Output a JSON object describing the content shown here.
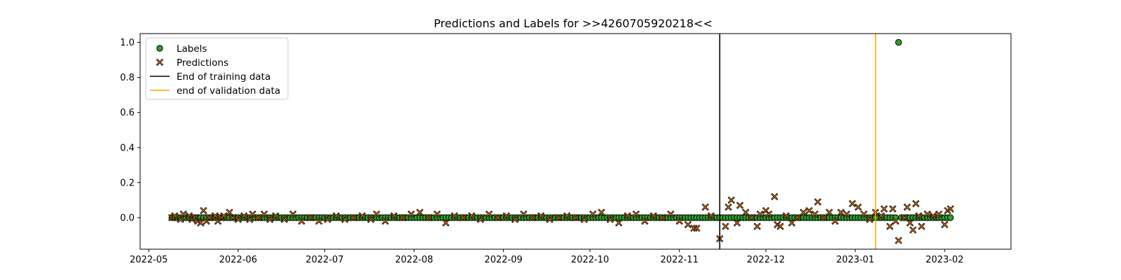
{
  "chart_data": {
    "type": "scatter",
    "title": "Predictions and Labels for >>4260705920218<<",
    "xlabel": "",
    "ylabel": "",
    "x_type": "date",
    "xlim": [
      "2022-04-28",
      "2023-02-24"
    ],
    "ylim": [
      -0.18,
      1.05
    ],
    "x_ticks": [
      "2022-05",
      "2022-06",
      "2022-07",
      "2022-08",
      "2022-09",
      "2022-10",
      "2022-11",
      "2022-12",
      "2023-01",
      "2023-02"
    ],
    "y_ticks": [
      "0.0",
      "0.2",
      "0.4",
      "0.6",
      "0.8",
      "1.0"
    ],
    "grid": false,
    "legend_position": "top-left",
    "legend": [
      "Labels",
      "Predictions",
      "End of training data",
      "end of validation data"
    ],
    "colors": {
      "labels": "#2ca02c",
      "predictions": "#ff7f0e",
      "training_line": "#000000",
      "validation_line": "#ffa500",
      "marker_edge": "#000000"
    },
    "vlines": [
      {
        "name": "End of training data",
        "x": "2022-11-15"
      },
      {
        "name": "end of validation data",
        "x": "2023-01-08"
      }
    ],
    "series": [
      {
        "name": "Labels",
        "marker": "circle",
        "start": "2022-05-09",
        "end": "2023-02-03",
        "default_value": 0.0,
        "points": [
          [
            "2023-01-16",
            1.0
          ]
        ]
      },
      {
        "name": "Predictions",
        "marker": "x",
        "start": "2022-05-09",
        "end": "2023-02-03",
        "points": [
          [
            "2022-05-09",
            0.0
          ],
          [
            "2022-05-10",
            0.01
          ],
          [
            "2022-05-12",
            -0.01
          ],
          [
            "2022-05-13",
            0.02
          ],
          [
            "2022-05-15",
            0.01
          ],
          [
            "2022-05-16",
            -0.01
          ],
          [
            "2022-05-17",
            0.0
          ],
          [
            "2022-05-18",
            -0.02
          ],
          [
            "2022-05-19",
            -0.03
          ],
          [
            "2022-05-20",
            0.04
          ],
          [
            "2022-05-21",
            -0.02
          ],
          [
            "2022-05-22",
            0.0
          ],
          [
            "2022-05-24",
            0.01
          ],
          [
            "2022-05-25",
            -0.02
          ],
          [
            "2022-05-26",
            0.0
          ],
          [
            "2022-05-27",
            0.01
          ],
          [
            "2022-05-29",
            0.03
          ],
          [
            "2022-05-30",
            0.0
          ],
          [
            "2022-06-01",
            -0.01
          ],
          [
            "2022-06-03",
            0.01
          ],
          [
            "2022-06-05",
            -0.01
          ],
          [
            "2022-06-06",
            0.02
          ],
          [
            "2022-06-08",
            0.0
          ],
          [
            "2022-06-10",
            0.02
          ],
          [
            "2022-06-12",
            -0.01
          ],
          [
            "2022-06-14",
            0.01
          ],
          [
            "2022-06-17",
            -0.01
          ],
          [
            "2022-06-20",
            0.02
          ],
          [
            "2022-06-23",
            -0.02
          ],
          [
            "2022-06-26",
            0.0
          ],
          [
            "2022-06-29",
            -0.02
          ],
          [
            "2022-07-02",
            -0.01
          ],
          [
            "2022-07-05",
            0.01
          ],
          [
            "2022-07-08",
            -0.01
          ],
          [
            "2022-07-11",
            0.0
          ],
          [
            "2022-07-14",
            0.01
          ],
          [
            "2022-07-17",
            -0.01
          ],
          [
            "2022-07-19",
            0.02
          ],
          [
            "2022-07-22",
            -0.02
          ],
          [
            "2022-07-25",
            0.01
          ],
          [
            "2022-07-28",
            0.0
          ],
          [
            "2022-07-31",
            0.02
          ],
          [
            "2022-08-03",
            0.03
          ],
          [
            "2022-08-06",
            0.0
          ],
          [
            "2022-08-09",
            0.02
          ],
          [
            "2022-08-12",
            -0.03
          ],
          [
            "2022-08-15",
            0.01
          ],
          [
            "2022-08-18",
            0.0
          ],
          [
            "2022-08-21",
            0.01
          ],
          [
            "2022-08-24",
            -0.01
          ],
          [
            "2022-08-27",
            0.02
          ],
          [
            "2022-08-30",
            0.0
          ],
          [
            "2022-09-02",
            0.01
          ],
          [
            "2022-09-05",
            -0.01
          ],
          [
            "2022-09-08",
            0.02
          ],
          [
            "2022-09-11",
            0.0
          ],
          [
            "2022-09-14",
            0.01
          ],
          [
            "2022-09-17",
            -0.01
          ],
          [
            "2022-09-20",
            0.0
          ],
          [
            "2022-09-23",
            0.01
          ],
          [
            "2022-09-26",
            0.0
          ],
          [
            "2022-09-29",
            -0.01
          ],
          [
            "2022-10-02",
            0.02
          ],
          [
            "2022-10-05",
            0.03
          ],
          [
            "2022-10-08",
            -0.01
          ],
          [
            "2022-10-11",
            -0.03
          ],
          [
            "2022-10-14",
            0.01
          ],
          [
            "2022-10-17",
            0.02
          ],
          [
            "2022-10-20",
            -0.02
          ],
          [
            "2022-10-23",
            0.01
          ],
          [
            "2022-10-26",
            0.0
          ],
          [
            "2022-10-29",
            0.02
          ],
          [
            "2022-11-01",
            -0.02
          ],
          [
            "2022-11-04",
            -0.04
          ],
          [
            "2022-11-06",
            -0.06
          ],
          [
            "2022-11-07",
            -0.06
          ],
          [
            "2022-11-10",
            0.06
          ],
          [
            "2022-11-12",
            0.01
          ],
          [
            "2022-11-15",
            -0.12
          ],
          [
            "2022-11-17",
            -0.05
          ],
          [
            "2022-11-18",
            0.06
          ],
          [
            "2022-11-19",
            0.1
          ],
          [
            "2022-11-21",
            -0.03
          ],
          [
            "2022-11-22",
            0.07
          ],
          [
            "2022-11-24",
            0.03
          ],
          [
            "2022-11-26",
            0.0
          ],
          [
            "2022-11-28",
            -0.05
          ],
          [
            "2022-11-29",
            0.02
          ],
          [
            "2022-12-01",
            0.04
          ],
          [
            "2022-12-02",
            0.02
          ],
          [
            "2022-12-04",
            0.12
          ],
          [
            "2022-12-05",
            -0.04
          ],
          [
            "2022-12-06",
            -0.05
          ],
          [
            "2022-12-08",
            0.01
          ],
          [
            "2022-12-10",
            -0.03
          ],
          [
            "2022-12-12",
            0.0
          ],
          [
            "2022-12-14",
            0.03
          ],
          [
            "2022-12-16",
            0.04
          ],
          [
            "2022-12-18",
            0.02
          ],
          [
            "2022-12-19",
            0.09
          ],
          [
            "2022-12-21",
            0.0
          ],
          [
            "2022-12-23",
            0.03
          ],
          [
            "2022-12-25",
            -0.02
          ],
          [
            "2022-12-27",
            0.03
          ],
          [
            "2022-12-29",
            0.02
          ],
          [
            "2022-12-31",
            0.08
          ],
          [
            "2023-01-02",
            0.06
          ],
          [
            "2023-01-04",
            0.02
          ],
          [
            "2023-01-06",
            -0.01
          ],
          [
            "2023-01-08",
            0.03
          ],
          [
            "2023-01-10",
            0.01
          ],
          [
            "2023-01-11",
            0.05
          ],
          [
            "2023-01-13",
            -0.05
          ],
          [
            "2023-01-14",
            0.05
          ],
          [
            "2023-01-15",
            -0.02
          ],
          [
            "2023-01-16",
            -0.13
          ],
          [
            "2023-01-18",
            0.0
          ],
          [
            "2023-01-19",
            0.06
          ],
          [
            "2023-01-20",
            -0.03
          ],
          [
            "2023-01-21",
            -0.07
          ],
          [
            "2023-01-22",
            0.08
          ],
          [
            "2023-01-23",
            0.01
          ],
          [
            "2023-01-24",
            -0.05
          ],
          [
            "2023-01-26",
            0.02
          ],
          [
            "2023-01-28",
            0.01
          ],
          [
            "2023-01-30",
            0.02
          ],
          [
            "2023-02-01",
            -0.04
          ],
          [
            "2023-02-02",
            0.04
          ],
          [
            "2023-02-03",
            0.05
          ]
        ]
      }
    ]
  }
}
